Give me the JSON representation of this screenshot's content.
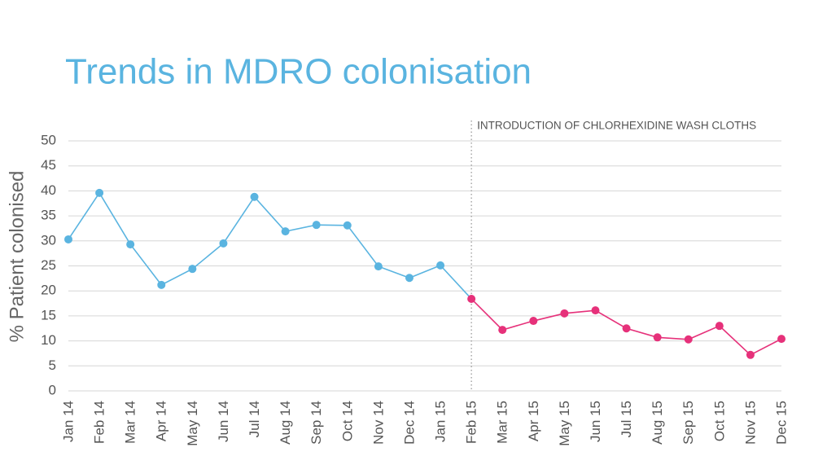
{
  "chart_data": {
    "type": "line",
    "title": "Trends in MDRO colonisation",
    "y_label": "% Patient colonised",
    "categories": [
      "Jan 14",
      "Feb 14",
      "Mar 14",
      "Apr 14",
      "May 14",
      "Jun 14",
      "Jul 14",
      "Aug 14",
      "Sep 14",
      "Oct 14",
      "Nov 14",
      "Dec 14",
      "Jan 15",
      "Feb 15",
      "Mar 15",
      "Apr 15",
      "May 15",
      "Jun 15",
      "Jul 15",
      "Aug 15",
      "Sep 15",
      "Oct 15",
      "Nov 15",
      "Dec 15"
    ],
    "series": [
      {
        "color": "#5ab4e0",
        "values": [
          30.3,
          39.6,
          29.3,
          21.2,
          24.4,
          29.5,
          38.8,
          31.9,
          33.2,
          33.1,
          24.9,
          22.6,
          25.1,
          null,
          null,
          null,
          null,
          null,
          null,
          null,
          null,
          null,
          null,
          null
        ]
      },
      {
        "color": "#e6317a",
        "values": [
          null,
          null,
          null,
          null,
          null,
          null,
          null,
          null,
          null,
          null,
          null,
          null,
          null,
          18.4,
          12.2,
          14.0,
          15.5,
          16.1,
          12.5,
          10.7,
          10.3,
          13.0,
          7.2,
          10.4
        ]
      }
    ],
    "ylim": [
      0,
      50
    ],
    "yticks": [
      0,
      5,
      10,
      15,
      20,
      25,
      30,
      35,
      40,
      45,
      50
    ],
    "grid": true,
    "annotation": {
      "text": "INTRODUCTION OF CHLORHEXIDINE WASH CLOTHS",
      "category": "Feb 15"
    }
  }
}
